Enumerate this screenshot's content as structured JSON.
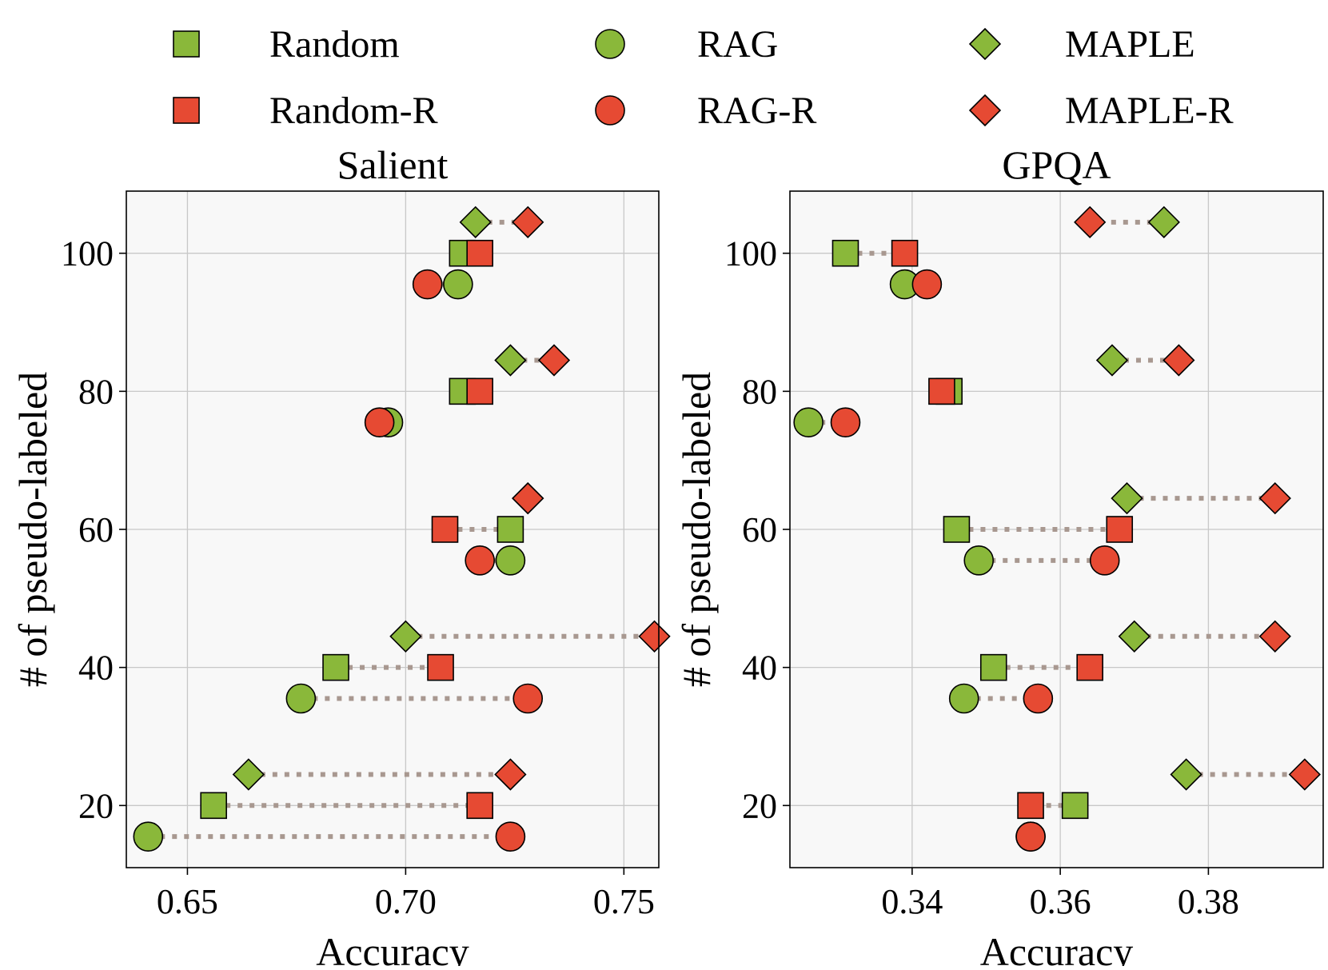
{
  "legend": {
    "entries": [
      {
        "id": "random",
        "label": "Random",
        "marker": "square",
        "color": "#8ab83a"
      },
      {
        "id": "rag",
        "label": "RAG",
        "marker": "circle",
        "color": "#8ab83a"
      },
      {
        "id": "maple",
        "label": "MAPLE",
        "marker": "diamond",
        "color": "#8ab83a"
      },
      {
        "id": "random_r",
        "label": "Random-R",
        "marker": "square",
        "color": "#e64a33"
      },
      {
        "id": "rag_r",
        "label": "RAG-R",
        "marker": "circle",
        "color": "#e64a33"
      },
      {
        "id": "maple_r",
        "label": "MAPLE-R",
        "marker": "diamond",
        "color": "#e64a33"
      }
    ]
  },
  "colors": {
    "green": "#8ab83a",
    "red": "#e64a33",
    "connector": "#a89890",
    "panel_bg": "#f8f8f8",
    "grid": "#c8c8c8"
  },
  "chart_data": [
    {
      "type": "scatter",
      "title": "Salient",
      "xlabel": "Accuracy",
      "ylabel": "# of pseudo-labeled",
      "xlim": [
        0.636,
        0.758
      ],
      "ylim": [
        11,
        109
      ],
      "xticks": [
        0.65,
        0.7,
        0.75
      ],
      "xtick_labels": [
        "0.65",
        "0.70",
        "0.75"
      ],
      "yticks": [
        20,
        40,
        60,
        80,
        100
      ],
      "ytick_labels": [
        "20",
        "40",
        "60",
        "80",
        "100"
      ],
      "grid": true,
      "y_offsets": {
        "random": 0,
        "rag": -4.5,
        "maple": 4.5
      },
      "pairs": [
        {
          "k": 20,
          "method": "maple",
          "base": 0.664,
          "refined": 0.724
        },
        {
          "k": 20,
          "method": "random",
          "base": 0.656,
          "refined": 0.717
        },
        {
          "k": 20,
          "method": "rag",
          "base": 0.641,
          "refined": 0.724
        },
        {
          "k": 40,
          "method": "maple",
          "base": 0.7,
          "refined": 0.757
        },
        {
          "k": 40,
          "method": "random",
          "base": 0.684,
          "refined": 0.708
        },
        {
          "k": 40,
          "method": "rag",
          "base": 0.676,
          "refined": 0.728
        },
        {
          "k": 60,
          "method": "maple",
          "base": 0.728,
          "refined": 0.728
        },
        {
          "k": 60,
          "method": "random",
          "base": 0.724,
          "refined": 0.709
        },
        {
          "k": 60,
          "method": "rag",
          "base": 0.724,
          "refined": 0.717
        },
        {
          "k": 80,
          "method": "maple",
          "base": 0.724,
          "refined": 0.734
        },
        {
          "k": 80,
          "method": "random",
          "base": 0.713,
          "refined": 0.717
        },
        {
          "k": 80,
          "method": "rag",
          "base": 0.696,
          "refined": 0.694
        },
        {
          "k": 100,
          "method": "maple",
          "base": 0.716,
          "refined": 0.728
        },
        {
          "k": 100,
          "method": "random",
          "base": 0.713,
          "refined": 0.717
        },
        {
          "k": 100,
          "method": "rag",
          "base": 0.712,
          "refined": 0.705
        }
      ]
    },
    {
      "type": "scatter",
      "title": "GPQA",
      "xlabel": "Accuracy",
      "ylabel": "# of pseudo-labeled",
      "xlim": [
        0.3235,
        0.3955
      ],
      "ylim": [
        11,
        109
      ],
      "xticks": [
        0.34,
        0.36,
        0.38
      ],
      "xtick_labels": [
        "0.34",
        "0.36",
        "0.38"
      ],
      "yticks": [
        20,
        40,
        60,
        80,
        100
      ],
      "ytick_labels": [
        "20",
        "40",
        "60",
        "80",
        "100"
      ],
      "grid": true,
      "y_offsets": {
        "random": 0,
        "rag": -4.5,
        "maple": 4.5
      },
      "pairs": [
        {
          "k": 20,
          "method": "maple",
          "base": 0.377,
          "refined": 0.393
        },
        {
          "k": 20,
          "method": "random",
          "base": 0.362,
          "refined": 0.356
        },
        {
          "k": 20,
          "method": "rag",
          "base": 0.356,
          "refined": 0.356
        },
        {
          "k": 40,
          "method": "maple",
          "base": 0.37,
          "refined": 0.389
        },
        {
          "k": 40,
          "method": "random",
          "base": 0.351,
          "refined": 0.364
        },
        {
          "k": 40,
          "method": "rag",
          "base": 0.347,
          "refined": 0.357
        },
        {
          "k": 60,
          "method": "maple",
          "base": 0.369,
          "refined": 0.389
        },
        {
          "k": 60,
          "method": "random",
          "base": 0.346,
          "refined": 0.368
        },
        {
          "k": 60,
          "method": "rag",
          "base": 0.349,
          "refined": 0.366
        },
        {
          "k": 80,
          "method": "maple",
          "base": 0.367,
          "refined": 0.376
        },
        {
          "k": 80,
          "method": "random",
          "base": 0.345,
          "refined": 0.344
        },
        {
          "k": 80,
          "method": "rag",
          "base": 0.326,
          "refined": 0.331
        },
        {
          "k": 100,
          "method": "maple",
          "base": 0.374,
          "refined": 0.364
        },
        {
          "k": 100,
          "method": "random",
          "base": 0.331,
          "refined": 0.339
        },
        {
          "k": 100,
          "method": "rag",
          "base": 0.339,
          "refined": 0.342
        }
      ]
    }
  ]
}
